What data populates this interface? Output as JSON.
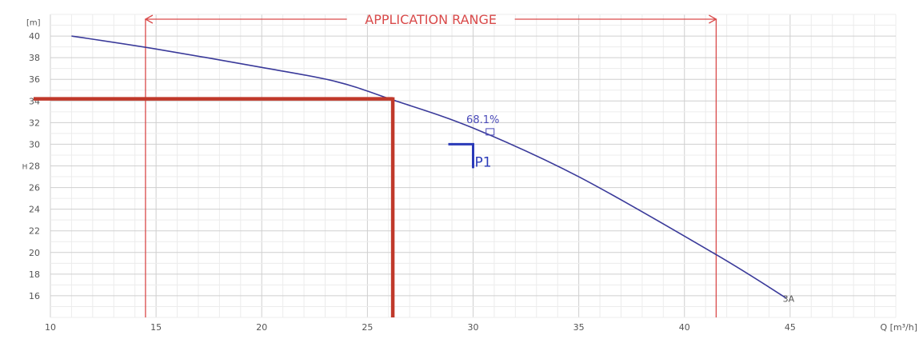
{
  "chart_data": {
    "type": "line",
    "xlabel": "Q [m³/h]",
    "ylabel": "H",
    "yunit": "[m]",
    "xlim": [
      10,
      50
    ],
    "ylim": [
      14,
      42
    ],
    "xticks": [
      10,
      15,
      20,
      25,
      30,
      35,
      40,
      45
    ],
    "yticks": [
      16,
      18,
      20,
      22,
      24,
      26,
      28,
      30,
      32,
      34,
      36,
      38,
      40
    ],
    "grid": true,
    "series": [
      {
        "name": "3A",
        "color": "#3a3a9a",
        "x": [
          11,
          15,
          20,
          23.5,
          26.2,
          30,
          35,
          41.5,
          44.8
        ],
        "y": [
          40,
          38.8,
          37.1,
          35.8,
          34.1,
          31.5,
          27,
          19.8,
          15.8
        ]
      }
    ],
    "application_range": {
      "label": "APPLICATION RANGE",
      "x_start": 14.5,
      "x_end": 41.5,
      "color": "#d94a4a"
    },
    "duty_point": {
      "label": "P1",
      "x": 30,
      "y": 30,
      "color": "#2a3ab8"
    },
    "efficiency": {
      "label": "68.1%",
      "x": 30.5,
      "y": 31,
      "color": "#4a4ab8"
    },
    "operating_lines": {
      "x": 26.2,
      "y": 34.2,
      "color": "#c0392b"
    }
  }
}
